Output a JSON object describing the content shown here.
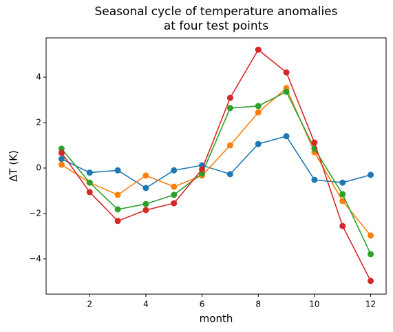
{
  "chart_data": {
    "type": "line",
    "title": "Seasonal cycle of temperature anomalies\nat four test points",
    "x_label": "month",
    "y_label": "ΔT (K)",
    "x": [
      1,
      2,
      3,
      4,
      5,
      6,
      7,
      8,
      9,
      10,
      11,
      12
    ],
    "series": [
      {
        "color": "#1f77b4",
        "values": [
          0.4,
          -0.2,
          -0.1,
          -0.88,
          -0.1,
          0.12,
          -0.27,
          1.06,
          1.4,
          -0.52,
          -0.64,
          -0.3
        ]
      },
      {
        "color": "#ff7f0e",
        "values": [
          0.15,
          -0.64,
          -1.18,
          -0.33,
          -0.82,
          -0.33,
          1.0,
          2.45,
          3.52,
          0.7,
          -1.45,
          -2.97
        ]
      },
      {
        "color": "#2ca02c",
        "values": [
          0.85,
          -0.64,
          -1.82,
          -1.58,
          -1.18,
          -0.24,
          2.64,
          2.73,
          3.36,
          0.85,
          -1.15,
          -3.79
        ]
      },
      {
        "color": "#d62728",
        "values": [
          0.67,
          -1.06,
          -2.33,
          -1.85,
          -1.55,
          -0.06,
          3.09,
          5.21,
          4.21,
          1.12,
          -2.55,
          -4.97
        ]
      }
    ],
    "xlim": [
      0.45,
      12.55
    ],
    "xticks": [
      2,
      4,
      6,
      8,
      10,
      12
    ],
    "ylim": [
      -5.55,
      5.73
    ],
    "yticks": [
      {
        "value": -4,
        "label": "−4"
      },
      {
        "value": -2,
        "label": "−2"
      },
      0,
      2,
      4
    ],
    "grid": false
  }
}
